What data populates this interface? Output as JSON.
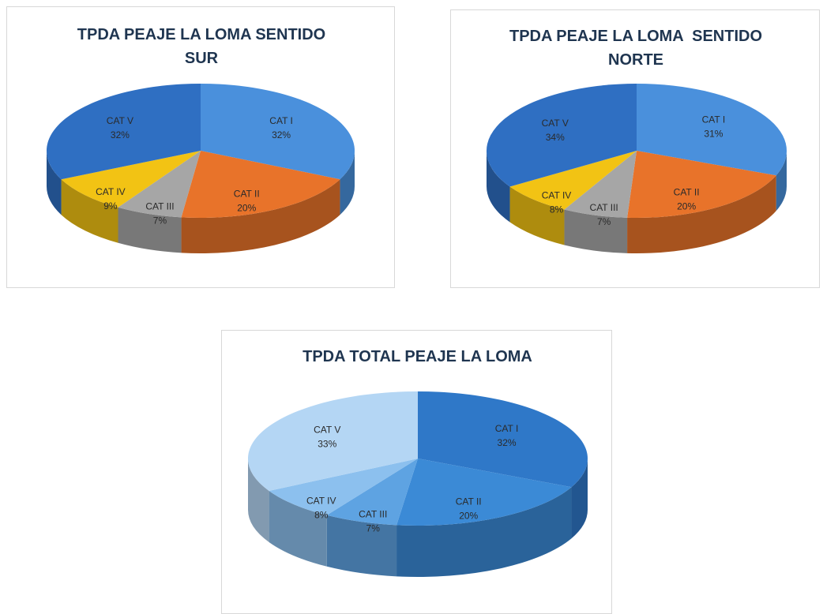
{
  "chart_data": [
    {
      "type": "pie",
      "title": "TPDA PEAJE LA LOMA SENTIDO SUR",
      "categories": [
        "CAT I",
        "CAT II",
        "CAT III",
        "CAT IV",
        "CAT V"
      ],
      "values": [
        32,
        20,
        7,
        9,
        32
      ],
      "value_labels": [
        "32%",
        "20%",
        "7%",
        "9%",
        "32%"
      ],
      "colors": [
        "#4a90dc",
        "#e8732a",
        "#a6a6a6",
        "#f2c314",
        "#2f6fc2"
      ]
    },
    {
      "type": "pie",
      "title": "TPDA PEAJE LA LOMA  SENTIDO NORTE",
      "categories": [
        "CAT I",
        "CAT II",
        "CAT III",
        "CAT IV",
        "CAT V"
      ],
      "values": [
        31,
        20,
        7,
        8,
        34
      ],
      "value_labels": [
        "31%",
        "20%",
        "7%",
        "8%",
        "34%"
      ],
      "colors": [
        "#4a90dc",
        "#e8732a",
        "#a6a6a6",
        "#f2c314",
        "#2f6fc2"
      ]
    },
    {
      "type": "pie",
      "title": "TPDA TOTAL PEAJE LA LOMA",
      "categories": [
        "CAT I",
        "CAT II",
        "CAT III",
        "CAT IV",
        "CAT V"
      ],
      "values": [
        32,
        20,
        7,
        8,
        33
      ],
      "value_labels": [
        "32%",
        "20%",
        "7%",
        "8%",
        "33%"
      ],
      "colors": [
        "#2f78c8",
        "#3b8ad6",
        "#5ea3e2",
        "#8cc0ee",
        "#b4d6f4"
      ]
    }
  ]
}
